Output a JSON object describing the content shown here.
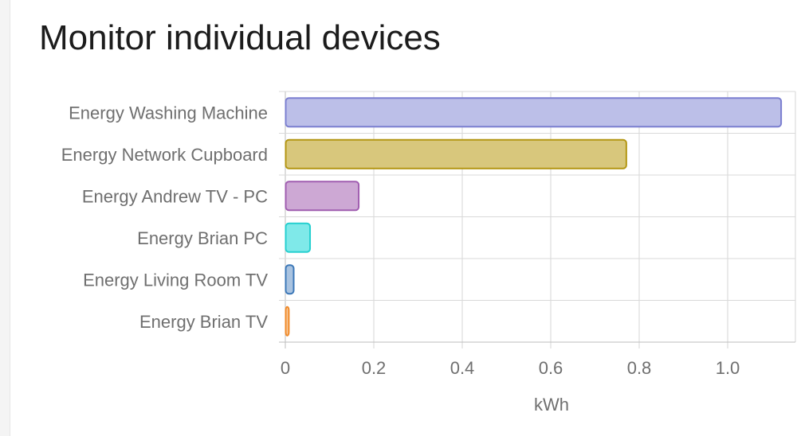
{
  "card": {
    "title": "Monitor individual devices"
  },
  "chart_data": {
    "type": "bar",
    "orientation": "horizontal",
    "title": "",
    "xlabel": "kWh",
    "ylabel": "",
    "xlim": [
      0,
      1.15
    ],
    "x_ticks": [
      0,
      0.2,
      0.4,
      0.6,
      0.8,
      1.0
    ],
    "x_tick_labels": [
      "0",
      "0.2",
      "0.4",
      "0.6",
      "0.8",
      "1.0"
    ],
    "grid": true,
    "legend": "none",
    "categories": [
      "Energy Washing Machine",
      "Energy Network Cupboard",
      "Energy Andrew TV - PC",
      "Energy Brian PC",
      "Energy Living Room TV",
      "Energy Brian TV"
    ],
    "values": [
      1.12,
      0.77,
      0.165,
      0.055,
      0.018,
      0.007
    ],
    "colors": [
      {
        "fill": "#bcbfe8",
        "stroke": "#7b7fd0"
      },
      {
        "fill": "#d8c77c",
        "stroke": "#b39612"
      },
      {
        "fill": "#cda8d4",
        "stroke": "#a05db0"
      },
      {
        "fill": "#7fe9e9",
        "stroke": "#25cfcf"
      },
      {
        "fill": "#a9c3e0",
        "stroke": "#3c78b8"
      },
      {
        "fill": "#f7c99a",
        "stroke": "#f08a2a"
      }
    ]
  }
}
